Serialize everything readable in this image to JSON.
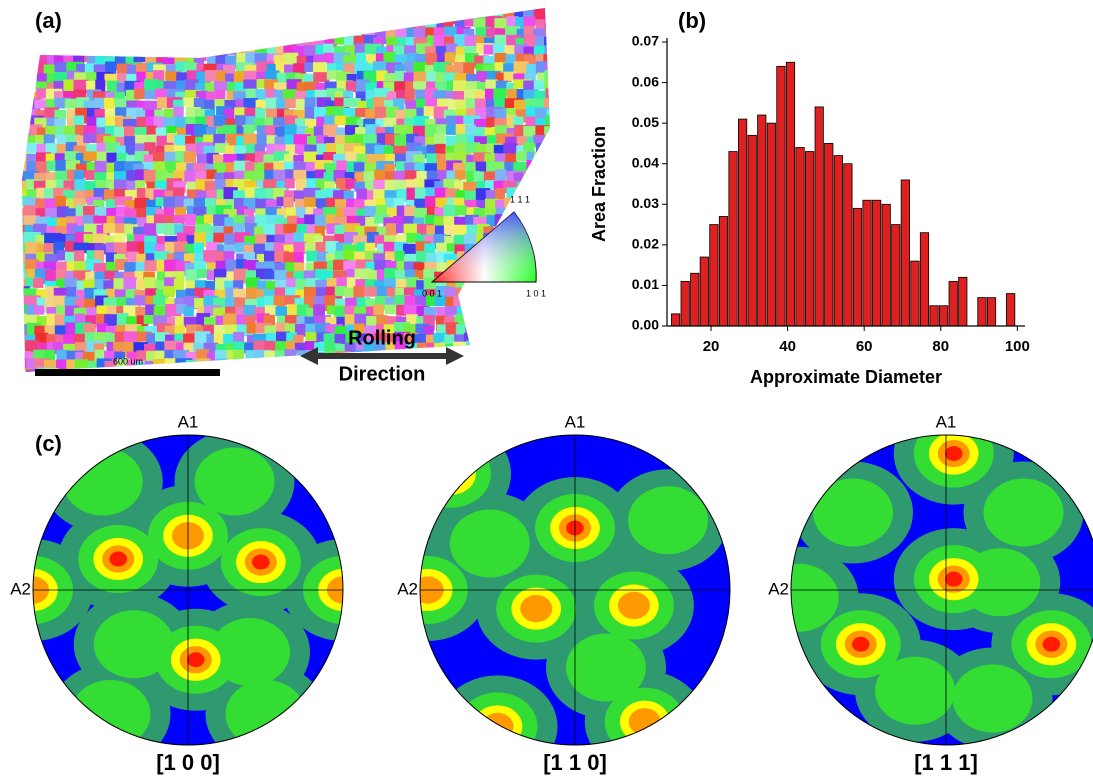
{
  "chart_data": {
    "type": "histogram",
    "panel_label": "(b)",
    "x_label": "Approximate Diameter",
    "y_label": "Area Fraction",
    "bins": [
      9.5,
      12,
      14.5,
      17,
      19.5,
      22,
      24.5,
      27,
      29.5,
      32,
      34.5,
      37,
      39.5,
      42,
      44.5,
      47,
      49.5,
      52,
      54.5,
      57,
      59.5,
      62,
      64.5,
      67,
      69.5,
      72,
      74.5,
      77,
      79.5,
      82,
      84.5,
      87,
      89.5,
      92,
      94.5,
      97,
      99.5
    ],
    "values": [
      0.003,
      0.011,
      0.013,
      0.017,
      0.025,
      0.027,
      0.043,
      0.051,
      0.047,
      0.052,
      0.05,
      0.064,
      0.065,
      0.044,
      0.043,
      0.054,
      0.045,
      0.042,
      0.04,
      0.029,
      0.031,
      0.031,
      0.03,
      0.025,
      0.036,
      0.016,
      0.023,
      0.005,
      0.005,
      0.011,
      0.012,
      0,
      0.007,
      0.007,
      0,
      0.008
    ],
    "color": "#dd2020",
    "xlim": [
      8.5,
      102
    ],
    "xticks": [
      20,
      40,
      60,
      80,
      100
    ],
    "ylim": [
      0,
      0.07
    ],
    "yticks": [
      {
        "value": 0,
        "label": "0.00"
      },
      0.01,
      0.02,
      0.03,
      0.04,
      0.05,
      0.06,
      0.07
    ]
  },
  "map_panel": {
    "panel_label": "(a)",
    "scale_bar": "600 um",
    "direction_top": "Rolling",
    "direction_bottom": "Direction",
    "legend_corners": {
      "origin": "0 0 1",
      "right": "1 0 1",
      "top": "1 1 1"
    }
  },
  "pole_panel": {
    "panel_label": "(c)",
    "figures": [
      {
        "title": "[1 0 0]",
        "axis_top": "A1",
        "axis_left": "A2"
      },
      {
        "title": "[1 1 0]",
        "axis_top": "A1",
        "axis_left": "A2"
      },
      {
        "title": "[1 1 1]",
        "axis_top": "A1",
        "axis_left": "A2"
      }
    ]
  }
}
